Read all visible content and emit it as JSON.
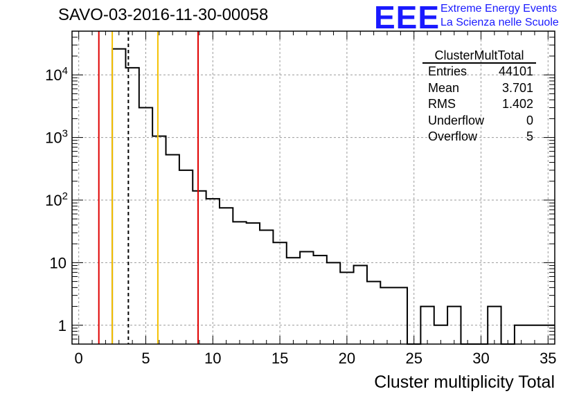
{
  "title": "SAVO-03-2016-11-30-00058",
  "logo": {
    "mark": "EEE",
    "line1": "Extreme Energy Events",
    "line2": "La Scienza nelle Scuole"
  },
  "stats": {
    "name": "ClusterMultTotal",
    "rows": [
      {
        "label": "Entries",
        "value": "44101"
      },
      {
        "label": "Mean",
        "value": "3.701"
      },
      {
        "label": "RMS",
        "value": "1.402"
      },
      {
        "label": "Underflow",
        "value": "0"
      },
      {
        "label": "Overflow",
        "value": "5"
      }
    ]
  },
  "colors": {
    "red_line": "#e00000",
    "yellow_line": "#f5c000",
    "histogram": "#000000",
    "grid": "#999999"
  },
  "chart_data": {
    "type": "histogram",
    "title": "SAVO-03-2016-11-30-00058",
    "xlabel": "Cluster multiplicity Total",
    "ylabel": "",
    "xlim": [
      -0.5,
      35.5
    ],
    "ylim": [
      0.5,
      50000
    ],
    "y_scale": "log",
    "grid": true,
    "x_ticks": [
      0,
      5,
      10,
      15,
      20,
      25,
      30,
      35
    ],
    "y_ticks": [
      {
        "value": 1,
        "label": "1"
      },
      {
        "value": 10,
        "label": "10"
      },
      {
        "value": 100,
        "label": "10^2"
      },
      {
        "value": 1000,
        "label": "10^3"
      },
      {
        "value": 10000,
        "label": "10^4"
      }
    ],
    "bins": [
      {
        "x0": 2.5,
        "x1": 3.5,
        "count": 26000
      },
      {
        "x0": 3.5,
        "x1": 4.5,
        "count": 13000
      },
      {
        "x0": 4.5,
        "x1": 5.5,
        "count": 3000
      },
      {
        "x0": 5.5,
        "x1": 6.5,
        "count": 1050
      },
      {
        "x0": 6.5,
        "x1": 7.5,
        "count": 530
      },
      {
        "x0": 7.5,
        "x1": 8.5,
        "count": 300
      },
      {
        "x0": 8.5,
        "x1": 9.5,
        "count": 140
      },
      {
        "x0": 9.5,
        "x1": 10.5,
        "count": 105
      },
      {
        "x0": 10.5,
        "x1": 11.5,
        "count": 75
      },
      {
        "x0": 11.5,
        "x1": 12.5,
        "count": 45
      },
      {
        "x0": 12.5,
        "x1": 13.5,
        "count": 43
      },
      {
        "x0": 13.5,
        "x1": 14.5,
        "count": 33
      },
      {
        "x0": 14.5,
        "x1": 15.5,
        "count": 21
      },
      {
        "x0": 15.5,
        "x1": 16.5,
        "count": 12
      },
      {
        "x0": 16.5,
        "x1": 17.5,
        "count": 15
      },
      {
        "x0": 17.5,
        "x1": 18.5,
        "count": 13
      },
      {
        "x0": 18.5,
        "x1": 19.5,
        "count": 10
      },
      {
        "x0": 19.5,
        "x1": 20.5,
        "count": 7
      },
      {
        "x0": 20.5,
        "x1": 21.5,
        "count": 9
      },
      {
        "x0": 21.5,
        "x1": 22.5,
        "count": 5
      },
      {
        "x0": 22.5,
        "x1": 23.5,
        "count": 4
      },
      {
        "x0": 23.5,
        "x1": 24.5,
        "count": 4
      },
      {
        "x0": 24.5,
        "x1": 25.5,
        "count": 0
      },
      {
        "x0": 25.5,
        "x1": 26.5,
        "count": 2
      },
      {
        "x0": 26.5,
        "x1": 27.5,
        "count": 1
      },
      {
        "x0": 27.5,
        "x1": 28.5,
        "count": 2
      },
      {
        "x0": 28.5,
        "x1": 29.5,
        "count": 0
      },
      {
        "x0": 29.5,
        "x1": 30.5,
        "count": 0
      },
      {
        "x0": 30.5,
        "x1": 31.5,
        "count": 2
      },
      {
        "x0": 31.5,
        "x1": 32.5,
        "count": 0
      },
      {
        "x0": 32.5,
        "x1": 35.5,
        "count": 1
      }
    ],
    "vertical_lines": [
      {
        "x": 1.5,
        "color": "#e00000",
        "style": "solid"
      },
      {
        "x": 2.5,
        "color": "#f5c000",
        "style": "solid"
      },
      {
        "x": 3.701,
        "color": "#000000",
        "style": "dashed"
      },
      {
        "x": 5.9,
        "color": "#f5c000",
        "style": "solid"
      },
      {
        "x": 8.9,
        "color": "#e00000",
        "style": "solid"
      }
    ]
  }
}
